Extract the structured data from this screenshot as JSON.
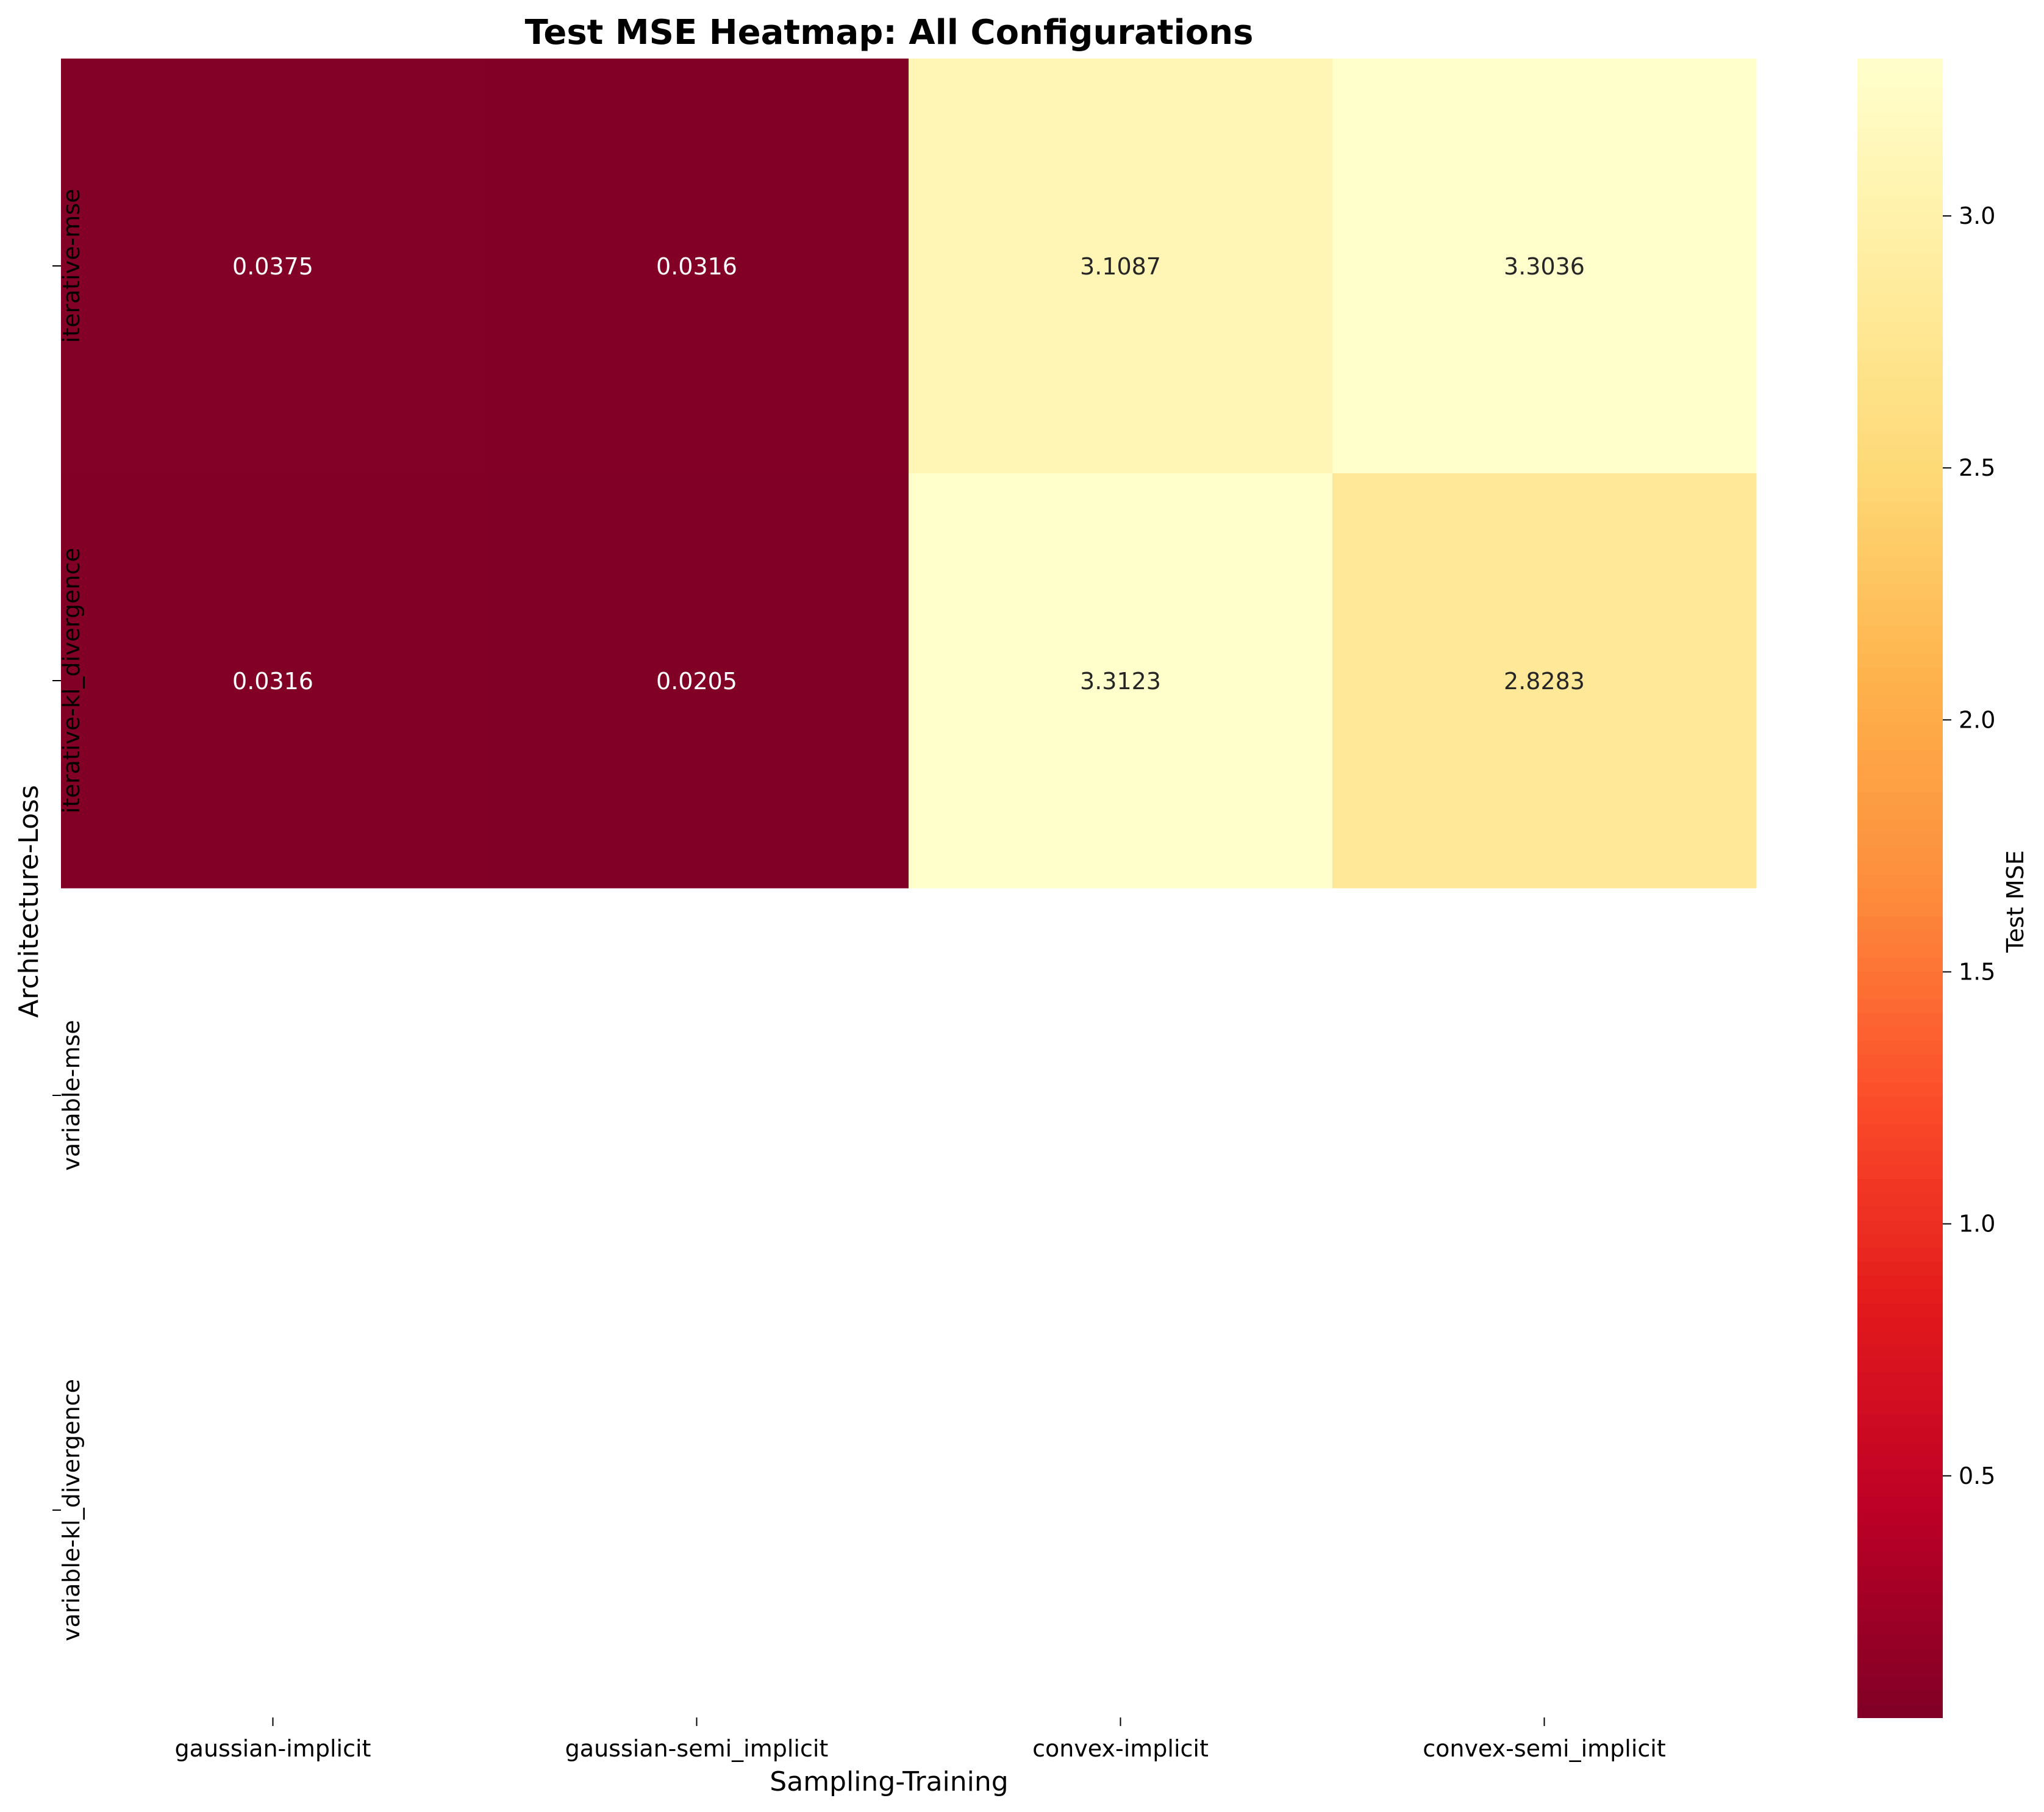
{
  "chart_data": {
    "type": "heatmap",
    "title": "Test MSE Heatmap: All Configurations",
    "xlabel": "Sampling-Training",
    "ylabel": "Architecture-Loss",
    "x_categories": [
      "gaussian-implicit",
      "gaussian-semi_implicit",
      "convex-implicit",
      "convex-semi_implicit"
    ],
    "y_categories": [
      "iterative-mse",
      "iterative-kl_divergence",
      "variable-mse",
      "variable-kl_divergence"
    ],
    "values": [
      [
        0.0375,
        0.0316,
        3.1087,
        3.3036
      ],
      [
        0.0316,
        0.0205,
        3.3123,
        2.8283
      ],
      [
        null,
        null,
        null,
        null
      ],
      [
        null,
        null,
        null,
        null
      ]
    ],
    "colormap": "YlOrRd_r",
    "colorbar": {
      "label": "Test MSE",
      "range": [
        0.0205,
        3.3123
      ],
      "ticks": [
        0.5,
        1.0,
        1.5,
        2.0,
        2.5,
        3.0
      ],
      "tick_labels": [
        "0.5",
        "1.0",
        "1.5",
        "2.0",
        "2.5",
        "3.0"
      ]
    },
    "annotation_format": "4 decimals"
  }
}
